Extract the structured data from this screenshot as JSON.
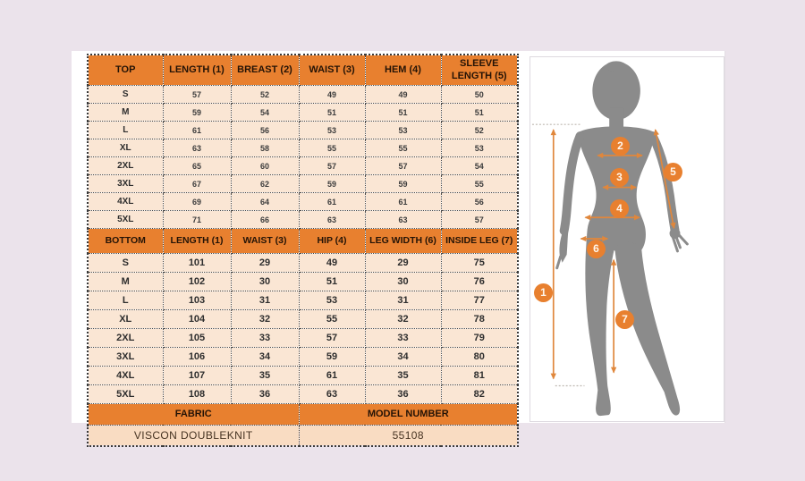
{
  "colors": {
    "background": "#EBE3EB",
    "header_orange": "#E8802F",
    "cell_peach": "#FAE6D4",
    "meta_peach": "#F9DCC2",
    "silhouette_gray": "#8B8B8B",
    "arrow_orange": "#E0873C"
  },
  "tables": {
    "top": {
      "headers": [
        "TOP",
        "LENGTH (1)",
        "BREAST (2)",
        "WAIST (3)",
        "HEM (4)",
        "SLEEVE LENGTH (5)"
      ],
      "rows": [
        {
          "size": "S",
          "values": [
            57,
            52,
            49,
            49,
            50
          ]
        },
        {
          "size": "M",
          "values": [
            59,
            54,
            51,
            51,
            51
          ]
        },
        {
          "size": "L",
          "values": [
            61,
            56,
            53,
            53,
            52
          ]
        },
        {
          "size": "XL",
          "values": [
            63,
            58,
            55,
            55,
            53
          ]
        },
        {
          "size": "2XL",
          "values": [
            65,
            60,
            57,
            57,
            54
          ]
        },
        {
          "size": "3XL",
          "values": [
            67,
            62,
            59,
            59,
            55
          ]
        },
        {
          "size": "4XL",
          "values": [
            69,
            64,
            61,
            61,
            56
          ]
        },
        {
          "size": "5XL",
          "values": [
            71,
            66,
            63,
            63,
            57
          ]
        }
      ]
    },
    "bottom": {
      "headers": [
        "BOTTOM",
        "LENGTH (1)",
        "WAIST (3)",
        "HIP (4)",
        "LEG WIDTH (6)",
        "INSIDE LEG (7)"
      ],
      "rows": [
        {
          "size": "S",
          "values": [
            101,
            29,
            49,
            29,
            75
          ]
        },
        {
          "size": "M",
          "values": [
            102,
            30,
            51,
            30,
            76
          ]
        },
        {
          "size": "L",
          "values": [
            103,
            31,
            53,
            31,
            77
          ]
        },
        {
          "size": "XL",
          "values": [
            104,
            32,
            55,
            32,
            78
          ]
        },
        {
          "size": "2XL",
          "values": [
            105,
            33,
            57,
            33,
            79
          ]
        },
        {
          "size": "3XL",
          "values": [
            106,
            34,
            59,
            34,
            80
          ]
        },
        {
          "size": "4XL",
          "values": [
            107,
            35,
            61,
            35,
            81
          ]
        },
        {
          "size": "5XL",
          "values": [
            108,
            36,
            63,
            36,
            82
          ]
        }
      ]
    },
    "meta": {
      "fabric_label": "FABRIC",
      "model_label": "MODEL NUMBER",
      "fabric_value": "VISCON DOUBLEKNIT",
      "model_value": "55108"
    }
  },
  "figure": {
    "marker_labels": [
      "1",
      "2",
      "3",
      "4",
      "5",
      "6",
      "7"
    ]
  }
}
